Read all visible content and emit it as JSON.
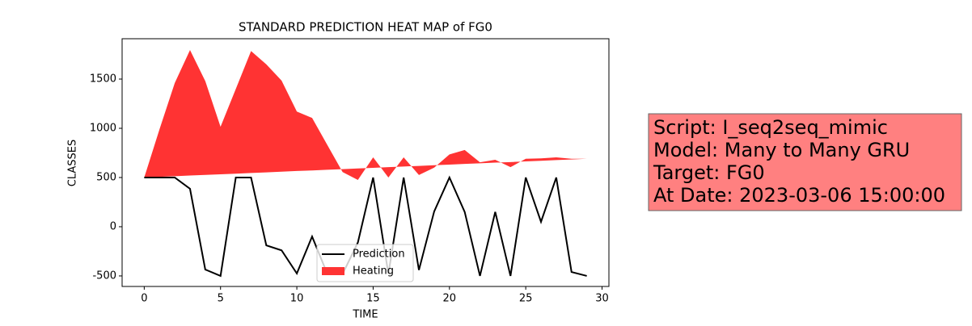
{
  "chart_data": {
    "type": "line",
    "title": "STANDARD PREDICTION HEAT MAP of FG0",
    "x_label": "TIME",
    "y_label": "CLASSES",
    "x": [
      0,
      1,
      2,
      3,
      4,
      5,
      6,
      7,
      8,
      9,
      10,
      11,
      12,
      13,
      14,
      15,
      16,
      17,
      18,
      19,
      20,
      21,
      22,
      23,
      24,
      25,
      26,
      27,
      28,
      29
    ],
    "series": [
      {
        "name": "Prediction",
        "color": "#000000",
        "kind": "line",
        "values": [
          500,
          500,
          500,
          385,
          -435,
          -500,
          500,
          500,
          -190,
          -240,
          -475,
          -100,
          -480,
          -480,
          -160,
          500,
          -480,
          500,
          -440,
          155,
          500,
          150,
          -500,
          150,
          -500,
          500,
          50,
          500,
          -460,
          -500
        ]
      },
      {
        "name": "Heating",
        "color": "#ff3333",
        "kind": "area",
        "values": [
          500,
          990,
          1460,
          1795,
          1480,
          1015,
          1400,
          1785,
          1650,
          1485,
          1170,
          1105,
          830,
          555,
          475,
          705,
          500,
          705,
          525,
          600,
          735,
          780,
          655,
          680,
          605,
          690,
          695,
          705,
          690,
          690
        ],
        "base": [
          500,
          507,
          513,
          520,
          526,
          533,
          539,
          546,
          552,
          559,
          566,
          572,
          579,
          585,
          592,
          598,
          605,
          612,
          618,
          625,
          631,
          638,
          644,
          651,
          657,
          664,
          670,
          677,
          683,
          690
        ]
      }
    ],
    "xlim": [
      -1.45,
      30.45
    ],
    "ylim": [
      -607,
      1910
    ],
    "xticks": [
      0,
      5,
      10,
      15,
      20,
      25,
      30
    ],
    "yticks": [
      -500,
      0,
      500,
      1000,
      1500
    ],
    "legend": "lower center",
    "annotation": {
      "color": "#ff8080",
      "lines": [
        "Script: I_seq2seq_mimic",
        "Model: Many to Many GRU",
        "Target: FG0",
        "At Date: 2023-03-06 15:00:00"
      ]
    }
  }
}
